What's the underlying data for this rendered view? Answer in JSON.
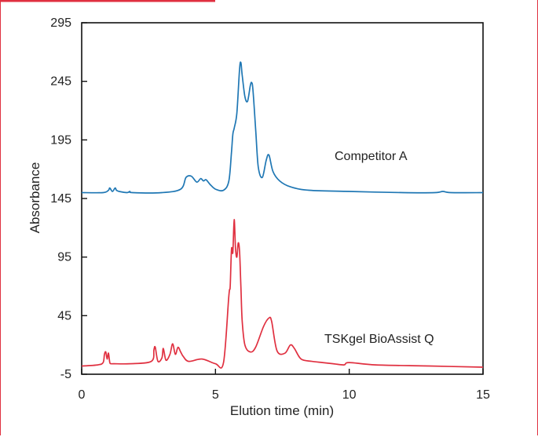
{
  "chart_data": {
    "type": "line",
    "title": "",
    "xlabel": "Elution time (min)",
    "ylabel": "Absorbance",
    "xlim": [
      0,
      15
    ],
    "ylim": [
      -5,
      295
    ],
    "xticks": [
      0,
      5,
      10,
      15
    ],
    "yticks": [
      -5,
      45,
      95,
      145,
      195,
      245,
      295
    ],
    "grid": false,
    "legend": "inline labels",
    "series": [
      {
        "name": "Competitor A",
        "color": "#1f77b4",
        "x": [
          0,
          0.8,
          1.0,
          1.05,
          1.15,
          1.25,
          1.3,
          1.4,
          1.7,
          1.8,
          1.9,
          3.0,
          3.7,
          3.9,
          4.1,
          4.3,
          4.45,
          4.55,
          4.65,
          4.8,
          5.0,
          5.3,
          5.5,
          5.6,
          5.65,
          5.7,
          5.8,
          5.9,
          5.95,
          6.0,
          6.1,
          6.2,
          6.3,
          6.35,
          6.4,
          6.5,
          6.6,
          6.75,
          6.9,
          7.0,
          7.15,
          7.4,
          7.8,
          8.5,
          10.0,
          12.0,
          13.2,
          13.5,
          13.8,
          15.0
        ],
        "y": [
          150,
          150,
          152,
          154,
          151,
          154,
          152,
          151,
          150,
          151,
          150,
          150,
          153,
          163,
          164,
          159,
          162,
          160,
          161,
          157,
          153,
          152,
          160,
          185,
          200,
          205,
          218,
          255,
          261,
          250,
          232,
          228,
          241,
          244,
          238,
          205,
          172,
          163,
          178,
          182,
          168,
          160,
          155,
          152,
          151,
          150,
          150,
          151,
          150,
          150
        ]
      },
      {
        "name": "TSKgel BioAssist Q",
        "color": "#e03040",
        "x": [
          0,
          0.6,
          0.8,
          0.85,
          0.9,
          0.95,
          1.0,
          1.05,
          1.1,
          1.2,
          1.8,
          2.6,
          2.7,
          2.75,
          2.85,
          3.0,
          3.05,
          3.15,
          3.3,
          3.4,
          3.5,
          3.6,
          3.7,
          3.8,
          4.0,
          4.5,
          5.0,
          5.3,
          5.5,
          5.55,
          5.6,
          5.65,
          5.7,
          5.75,
          5.8,
          5.85,
          5.9,
          5.95,
          6.0,
          6.1,
          6.3,
          6.5,
          6.8,
          7.0,
          7.1,
          7.3,
          7.6,
          7.8,
          7.95,
          8.2,
          8.6,
          9.0,
          9.4,
          9.8,
          10.0,
          11.0,
          13.0,
          15.0
        ],
        "y": [
          2,
          3,
          5,
          12,
          14,
          8,
          13,
          5,
          4,
          4,
          4,
          6,
          16,
          18,
          6,
          9,
          17,
          7,
          12,
          21,
          12,
          18,
          14,
          10,
          6,
          8,
          4,
          5,
          62,
          70,
          102,
          99,
          127,
          102,
          95,
          107,
          100,
          70,
          40,
          20,
          14,
          18,
          36,
          43,
          40,
          15,
          13,
          20,
          17,
          8,
          6,
          5,
          4,
          3,
          5,
          3,
          2,
          1
        ]
      }
    ]
  }
}
